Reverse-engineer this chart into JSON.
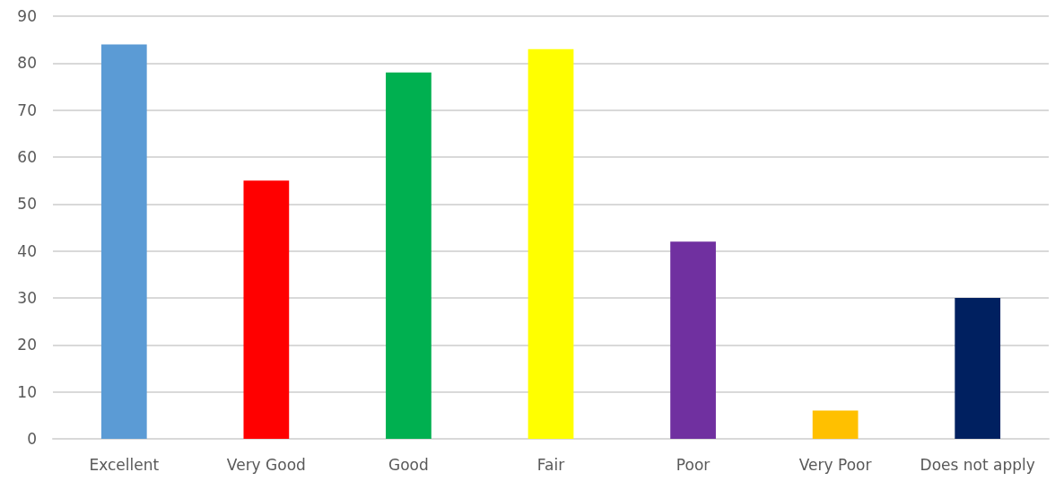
{
  "chart_data": {
    "type": "bar",
    "categories": [
      "Excellent",
      "Very Good",
      "Good",
      "Fair",
      "Poor",
      "Very Poor",
      "Does not apply"
    ],
    "values": [
      84,
      55,
      78,
      83,
      42,
      6,
      30
    ],
    "colors": [
      "#5b9bd5",
      "#ff0000",
      "#00b050",
      "#ffff00",
      "#7030a0",
      "#ffc000",
      "#002060"
    ],
    "ylim": [
      0,
      90
    ],
    "yticks": [
      0,
      10,
      20,
      30,
      40,
      50,
      60,
      70,
      80,
      90
    ],
    "grid": "y"
  }
}
